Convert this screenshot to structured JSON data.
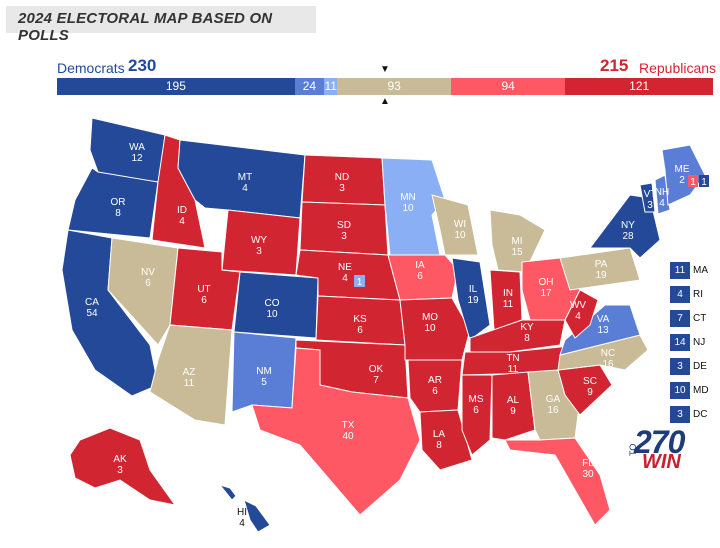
{
  "title": "2024 ELECTORAL MAP BASED ON POLLS",
  "summary": {
    "dem_label": "Democrats",
    "dem_total": "230",
    "rep_total": "215",
    "rep_label": "Republicans"
  },
  "bar": [
    {
      "value": 195,
      "label": "195",
      "color": "#244999"
    },
    {
      "value": 24,
      "label": "24",
      "color": "#5a7ed6"
    },
    {
      "value": 11,
      "label": "11",
      "color": "#8aaff5"
    },
    {
      "value": 93,
      "label": "93",
      "color": "#c9bb97"
    },
    {
      "value": 94,
      "label": "94",
      "color": "#ff5865"
    },
    {
      "value": 121,
      "label": "121",
      "color": "#d22532"
    }
  ],
  "colors": {
    "safe_dem": "#244999",
    "likely_dem": "#5a7ed6",
    "lean_dem": "#8aaff5",
    "tossup": "#c9bb97",
    "lean_rep": "#ff5865",
    "safe_rep": "#d22532"
  },
  "states": [
    {
      "abbr": "WA",
      "ev": "12"
    },
    {
      "abbr": "OR",
      "ev": "8"
    },
    {
      "abbr": "CA",
      "ev": "54"
    },
    {
      "abbr": "ID",
      "ev": "4"
    },
    {
      "abbr": "NV",
      "ev": "6"
    },
    {
      "abbr": "MT",
      "ev": "4"
    },
    {
      "abbr": "WY",
      "ev": "3"
    },
    {
      "abbr": "UT",
      "ev": "6"
    },
    {
      "abbr": "AZ",
      "ev": "11"
    },
    {
      "abbr": "CO",
      "ev": "10"
    },
    {
      "abbr": "NM",
      "ev": "5"
    },
    {
      "abbr": "ND",
      "ev": "3"
    },
    {
      "abbr": "SD",
      "ev": "3"
    },
    {
      "abbr": "NE",
      "ev": "4"
    },
    {
      "abbr": "KS",
      "ev": "6"
    },
    {
      "abbr": "OK",
      "ev": "7"
    },
    {
      "abbr": "TX",
      "ev": "40"
    },
    {
      "abbr": "MN",
      "ev": "10"
    },
    {
      "abbr": "IA",
      "ev": "6"
    },
    {
      "abbr": "MO",
      "ev": "10"
    },
    {
      "abbr": "AR",
      "ev": "6"
    },
    {
      "abbr": "LA",
      "ev": "8"
    },
    {
      "abbr": "WI",
      "ev": "10"
    },
    {
      "abbr": "IL",
      "ev": "19"
    },
    {
      "abbr": "MI",
      "ev": "15"
    },
    {
      "abbr": "IN",
      "ev": "11"
    },
    {
      "abbr": "OH",
      "ev": "17"
    },
    {
      "abbr": "KY",
      "ev": "8"
    },
    {
      "abbr": "TN",
      "ev": "11"
    },
    {
      "abbr": "MS",
      "ev": "6"
    },
    {
      "abbr": "AL",
      "ev": "9"
    },
    {
      "abbr": "GA",
      "ev": "16"
    },
    {
      "abbr": "FL",
      "ev": "30"
    },
    {
      "abbr": "SC",
      "ev": "9"
    },
    {
      "abbr": "NC",
      "ev": "16"
    },
    {
      "abbr": "VA",
      "ev": "13"
    },
    {
      "abbr": "WV",
      "ev": "4"
    },
    {
      "abbr": "PA",
      "ev": "19"
    },
    {
      "abbr": "NY",
      "ev": "28"
    },
    {
      "abbr": "VT",
      "ev": "3"
    },
    {
      "abbr": "NH",
      "ev": "4"
    },
    {
      "abbr": "ME",
      "ev": "2"
    },
    {
      "abbr": "AK",
      "ev": "3"
    },
    {
      "abbr": "HI",
      "ev": "4"
    }
  ],
  "ne_district": "1",
  "me_districts": [
    "1",
    "1"
  ],
  "northeast": [
    {
      "ev": "11",
      "abbr": "MA"
    },
    {
      "ev": "4",
      "abbr": "RI"
    },
    {
      "ev": "7",
      "abbr": "CT"
    },
    {
      "ev": "14",
      "abbr": "NJ"
    },
    {
      "ev": "3",
      "abbr": "DE"
    },
    {
      "ev": "10",
      "abbr": "MD"
    },
    {
      "ev": "3",
      "abbr": "DC"
    }
  ],
  "logo": {
    "number": "270",
    "to": "TO",
    "win": "WIN"
  }
}
